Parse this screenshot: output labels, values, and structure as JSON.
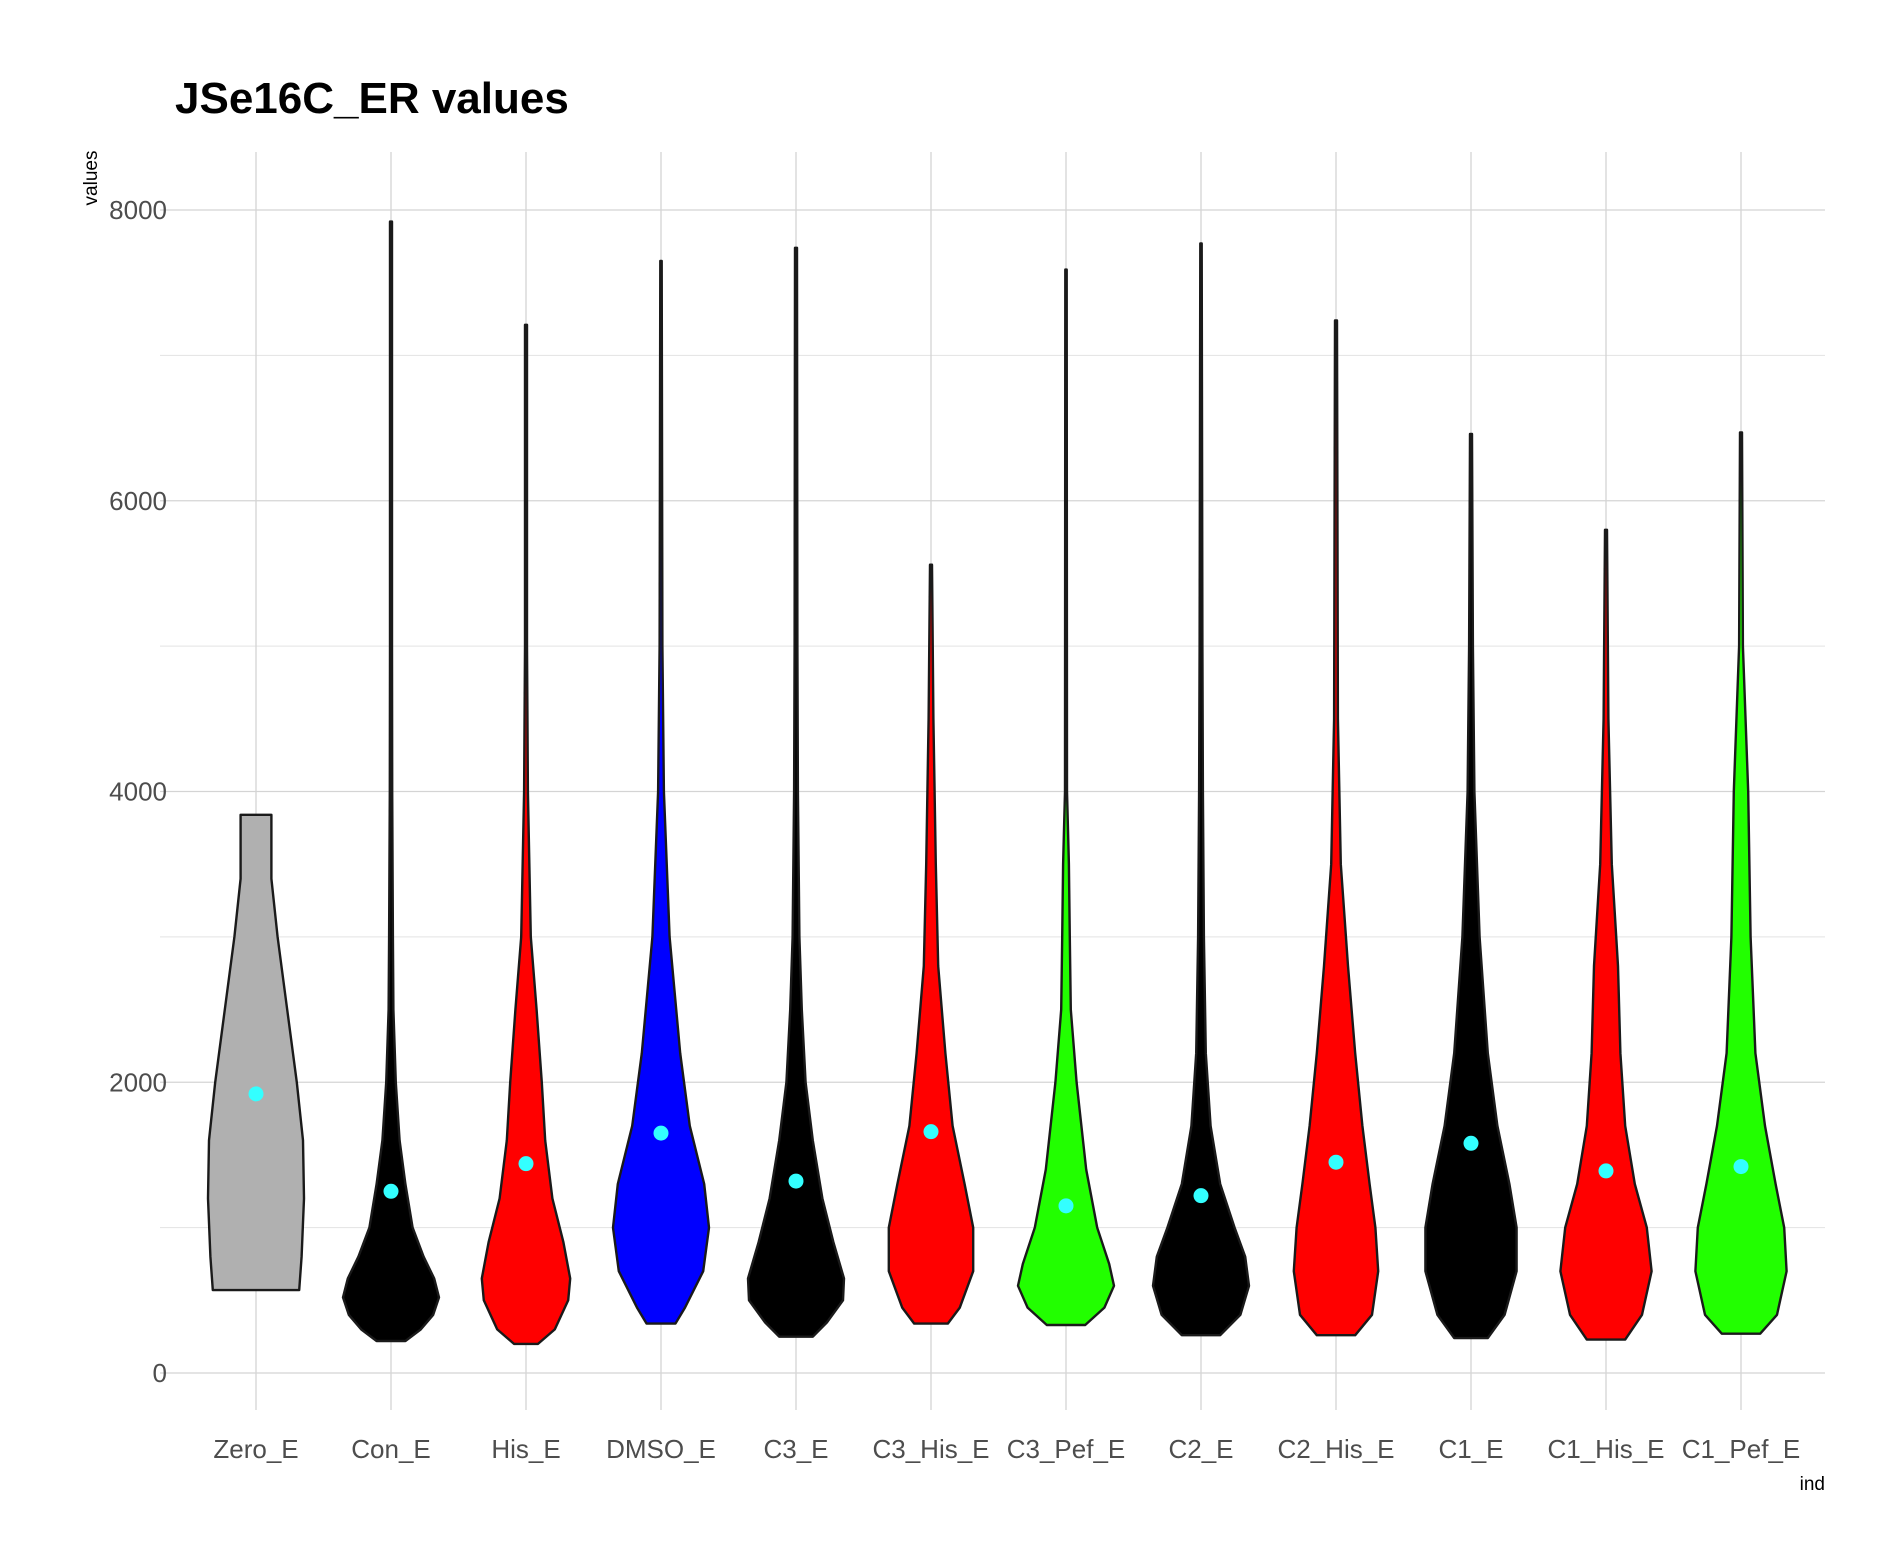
{
  "chart_data": {
    "type": "violin",
    "title": "JSe16C_ER values",
    "xlabel": "ind",
    "ylabel": "values",
    "ylim": [
      -400,
      8400
    ],
    "yticks": [
      0,
      2000,
      4000,
      6000,
      8000
    ],
    "y_minor_ticks": [
      1000,
      3000,
      5000,
      7000
    ],
    "grid": true,
    "legend": "none",
    "mean_marker_color": "#33FFFF",
    "categories": [
      "Zero_E",
      "Con_E",
      "His_E",
      "DMSO_E",
      "C3_E",
      "C3_His_E",
      "C3_Pef_E",
      "C2_E",
      "C2_His_E",
      "C1_E",
      "C1_His_E",
      "C1_Pef_E"
    ],
    "fills": [
      "#B0B0B0",
      "#000000",
      "#FF0000",
      "#0000FF",
      "#000000",
      "#FF0000",
      "#22FF00",
      "#000000",
      "#FF0000",
      "#000000",
      "#FF0000",
      "#22FF00"
    ],
    "min": [
      570,
      220,
      200,
      340,
      250,
      340,
      330,
      260,
      260,
      240,
      230,
      270
    ],
    "max": [
      3840,
      7920,
      7210,
      7650,
      7740,
      5560,
      7590,
      7770,
      7240,
      6460,
      5800,
      6470
    ],
    "mean": [
      1920,
      1250,
      1440,
      1650,
      1320,
      1660,
      1150,
      1220,
      1450,
      1580,
      1390,
      1420
    ],
    "density_profiles": [
      [
        [
          570,
          0.9
        ],
        [
          800,
          0.95
        ],
        [
          1200,
          1.0
        ],
        [
          1600,
          0.98
        ],
        [
          2000,
          0.85
        ],
        [
          2500,
          0.65
        ],
        [
          3000,
          0.45
        ],
        [
          3400,
          0.32
        ],
        [
          3840,
          0.32
        ]
      ],
      [
        [
          220,
          0.3
        ],
        [
          300,
          0.62
        ],
        [
          400,
          0.88
        ],
        [
          520,
          1.0
        ],
        [
          650,
          0.9
        ],
        [
          800,
          0.68
        ],
        [
          1000,
          0.45
        ],
        [
          1300,
          0.3
        ],
        [
          1600,
          0.18
        ],
        [
          2000,
          0.1
        ],
        [
          2500,
          0.05
        ],
        [
          3000,
          0.04
        ],
        [
          4000,
          0.025
        ],
        [
          5000,
          0.02
        ],
        [
          7920,
          0.02
        ]
      ],
      [
        [
          200,
          0.25
        ],
        [
          300,
          0.6
        ],
        [
          500,
          0.88
        ],
        [
          650,
          0.92
        ],
        [
          900,
          0.78
        ],
        [
          1200,
          0.55
        ],
        [
          1600,
          0.4
        ],
        [
          2000,
          0.33
        ],
        [
          2500,
          0.22
        ],
        [
          3000,
          0.1
        ],
        [
          4000,
          0.04
        ],
        [
          5000,
          0.02
        ],
        [
          7210,
          0.02
        ]
      ],
      [
        [
          340,
          0.3
        ],
        [
          450,
          0.5
        ],
        [
          700,
          0.88
        ],
        [
          1000,
          1.0
        ],
        [
          1300,
          0.9
        ],
        [
          1700,
          0.6
        ],
        [
          2200,
          0.4
        ],
        [
          3000,
          0.18
        ],
        [
          4000,
          0.06
        ],
        [
          5000,
          0.03
        ],
        [
          7650,
          0.015
        ]
      ],
      [
        [
          250,
          0.35
        ],
        [
          350,
          0.65
        ],
        [
          500,
          0.98
        ],
        [
          650,
          1.0
        ],
        [
          900,
          0.78
        ],
        [
          1200,
          0.55
        ],
        [
          1600,
          0.35
        ],
        [
          2000,
          0.2
        ],
        [
          2500,
          0.12
        ],
        [
          3000,
          0.07
        ],
        [
          4000,
          0.04
        ],
        [
          5000,
          0.03
        ],
        [
          7740,
          0.02
        ]
      ],
      [
        [
          340,
          0.35
        ],
        [
          450,
          0.6
        ],
        [
          700,
          0.88
        ],
        [
          1000,
          0.88
        ],
        [
          1300,
          0.7
        ],
        [
          1700,
          0.45
        ],
        [
          2200,
          0.3
        ],
        [
          2800,
          0.15
        ],
        [
          3500,
          0.1
        ],
        [
          4500,
          0.05
        ],
        [
          5560,
          0.02
        ]
      ],
      [
        [
          330,
          0.4
        ],
        [
          450,
          0.8
        ],
        [
          600,
          1.0
        ],
        [
          750,
          0.9
        ],
        [
          1000,
          0.65
        ],
        [
          1400,
          0.42
        ],
        [
          2000,
          0.22
        ],
        [
          2500,
          0.1
        ],
        [
          3000,
          0.08
        ],
        [
          3500,
          0.06
        ],
        [
          4000,
          0.02
        ],
        [
          7590,
          0.015
        ]
      ],
      [
        [
          260,
          0.4
        ],
        [
          400,
          0.82
        ],
        [
          600,
          1.0
        ],
        [
          800,
          0.92
        ],
        [
          1000,
          0.7
        ],
        [
          1300,
          0.4
        ],
        [
          1700,
          0.2
        ],
        [
          2200,
          0.1
        ],
        [
          3000,
          0.06
        ],
        [
          4000,
          0.04
        ],
        [
          5000,
          0.03
        ],
        [
          7770,
          0.015
        ]
      ],
      [
        [
          260,
          0.4
        ],
        [
          400,
          0.75
        ],
        [
          700,
          0.88
        ],
        [
          1000,
          0.82
        ],
        [
          1300,
          0.7
        ],
        [
          1700,
          0.55
        ],
        [
          2200,
          0.4
        ],
        [
          2800,
          0.25
        ],
        [
          3500,
          0.1
        ],
        [
          4500,
          0.04
        ],
        [
          7240,
          0.02
        ]
      ],
      [
        [
          240,
          0.35
        ],
        [
          400,
          0.7
        ],
        [
          700,
          0.95
        ],
        [
          1000,
          0.95
        ],
        [
          1300,
          0.8
        ],
        [
          1700,
          0.55
        ],
        [
          2200,
          0.35
        ],
        [
          3000,
          0.18
        ],
        [
          4000,
          0.07
        ],
        [
          5000,
          0.04
        ],
        [
          6460,
          0.02
        ]
      ],
      [
        [
          230,
          0.4
        ],
        [
          400,
          0.75
        ],
        [
          700,
          0.95
        ],
        [
          1000,
          0.85
        ],
        [
          1300,
          0.6
        ],
        [
          1700,
          0.4
        ],
        [
          2200,
          0.3
        ],
        [
          2800,
          0.25
        ],
        [
          3500,
          0.12
        ],
        [
          4500,
          0.05
        ],
        [
          5800,
          0.02
        ]
      ],
      [
        [
          270,
          0.4
        ],
        [
          400,
          0.75
        ],
        [
          700,
          0.95
        ],
        [
          1000,
          0.9
        ],
        [
          1300,
          0.72
        ],
        [
          1700,
          0.5
        ],
        [
          2200,
          0.3
        ],
        [
          3000,
          0.2
        ],
        [
          4000,
          0.15
        ],
        [
          5000,
          0.04
        ],
        [
          6470,
          0.02
        ]
      ]
    ]
  }
}
